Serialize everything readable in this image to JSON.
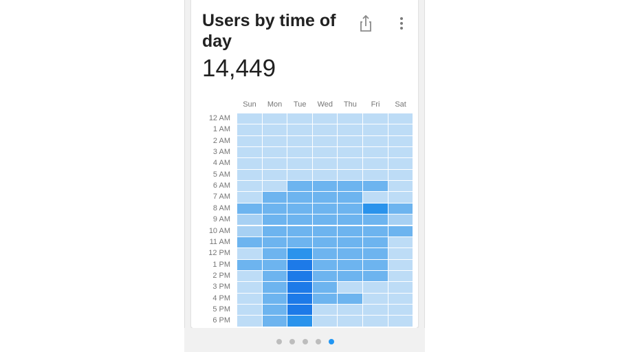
{
  "card": {
    "title": "Users by time of day",
    "total": "14,449",
    "share_icon": "share-icon",
    "more_icon": "more-vert-icon"
  },
  "chart_data": {
    "type": "heatmap",
    "title": "Users by time of day",
    "days": [
      "Sun",
      "Mon",
      "Tue",
      "Wed",
      "Thu",
      "Fri",
      "Sat"
    ],
    "hours": [
      "12 AM",
      "1 AM",
      "2 AM",
      "3 AM",
      "4 AM",
      "5 AM",
      "6 AM",
      "7 AM",
      "8 AM",
      "9 AM",
      "10 AM",
      "11 AM",
      "12 PM",
      "1 PM",
      "2 PM",
      "3 PM",
      "4 PM",
      "5 PM",
      "6 PM"
    ],
    "intensity_levels": 6,
    "values": [
      [
        0,
        0,
        0,
        0,
        0,
        0,
        0
      ],
      [
        0,
        0,
        0,
        0,
        0,
        0,
        0
      ],
      [
        0,
        0,
        0,
        0,
        0,
        0,
        0
      ],
      [
        0,
        0,
        0,
        0,
        0,
        0,
        0
      ],
      [
        0,
        0,
        0,
        0,
        0,
        0,
        0
      ],
      [
        0,
        0,
        0,
        0,
        0,
        0,
        0
      ],
      [
        0,
        0,
        2,
        2,
        2,
        2,
        0
      ],
      [
        0,
        2,
        2,
        2,
        2,
        0,
        0
      ],
      [
        2,
        2,
        2,
        2,
        2,
        4,
        2
      ],
      [
        1,
        2,
        2,
        2,
        2,
        2,
        1
      ],
      [
        1,
        2,
        2,
        2,
        2,
        2,
        2
      ],
      [
        2,
        2,
        2,
        2,
        2,
        2,
        0
      ],
      [
        0,
        2,
        4,
        2,
        2,
        2,
        0
      ],
      [
        2,
        2,
        5,
        2,
        2,
        2,
        0
      ],
      [
        0,
        2,
        5,
        2,
        2,
        2,
        0
      ],
      [
        0,
        2,
        5,
        2,
        0,
        0,
        0
      ],
      [
        0,
        2,
        5,
        2,
        2,
        0,
        0
      ],
      [
        0,
        2,
        5,
        0,
        0,
        0,
        0
      ],
      [
        0,
        2,
        4,
        0,
        0,
        0,
        0
      ]
    ],
    "colors": [
      "#bddcf6",
      "#a7d0f3",
      "#6db4ef",
      "#52a6ee",
      "#2a93ec",
      "#1d7ae8"
    ]
  },
  "pager": {
    "page_count": 5,
    "active_index": 4
  }
}
